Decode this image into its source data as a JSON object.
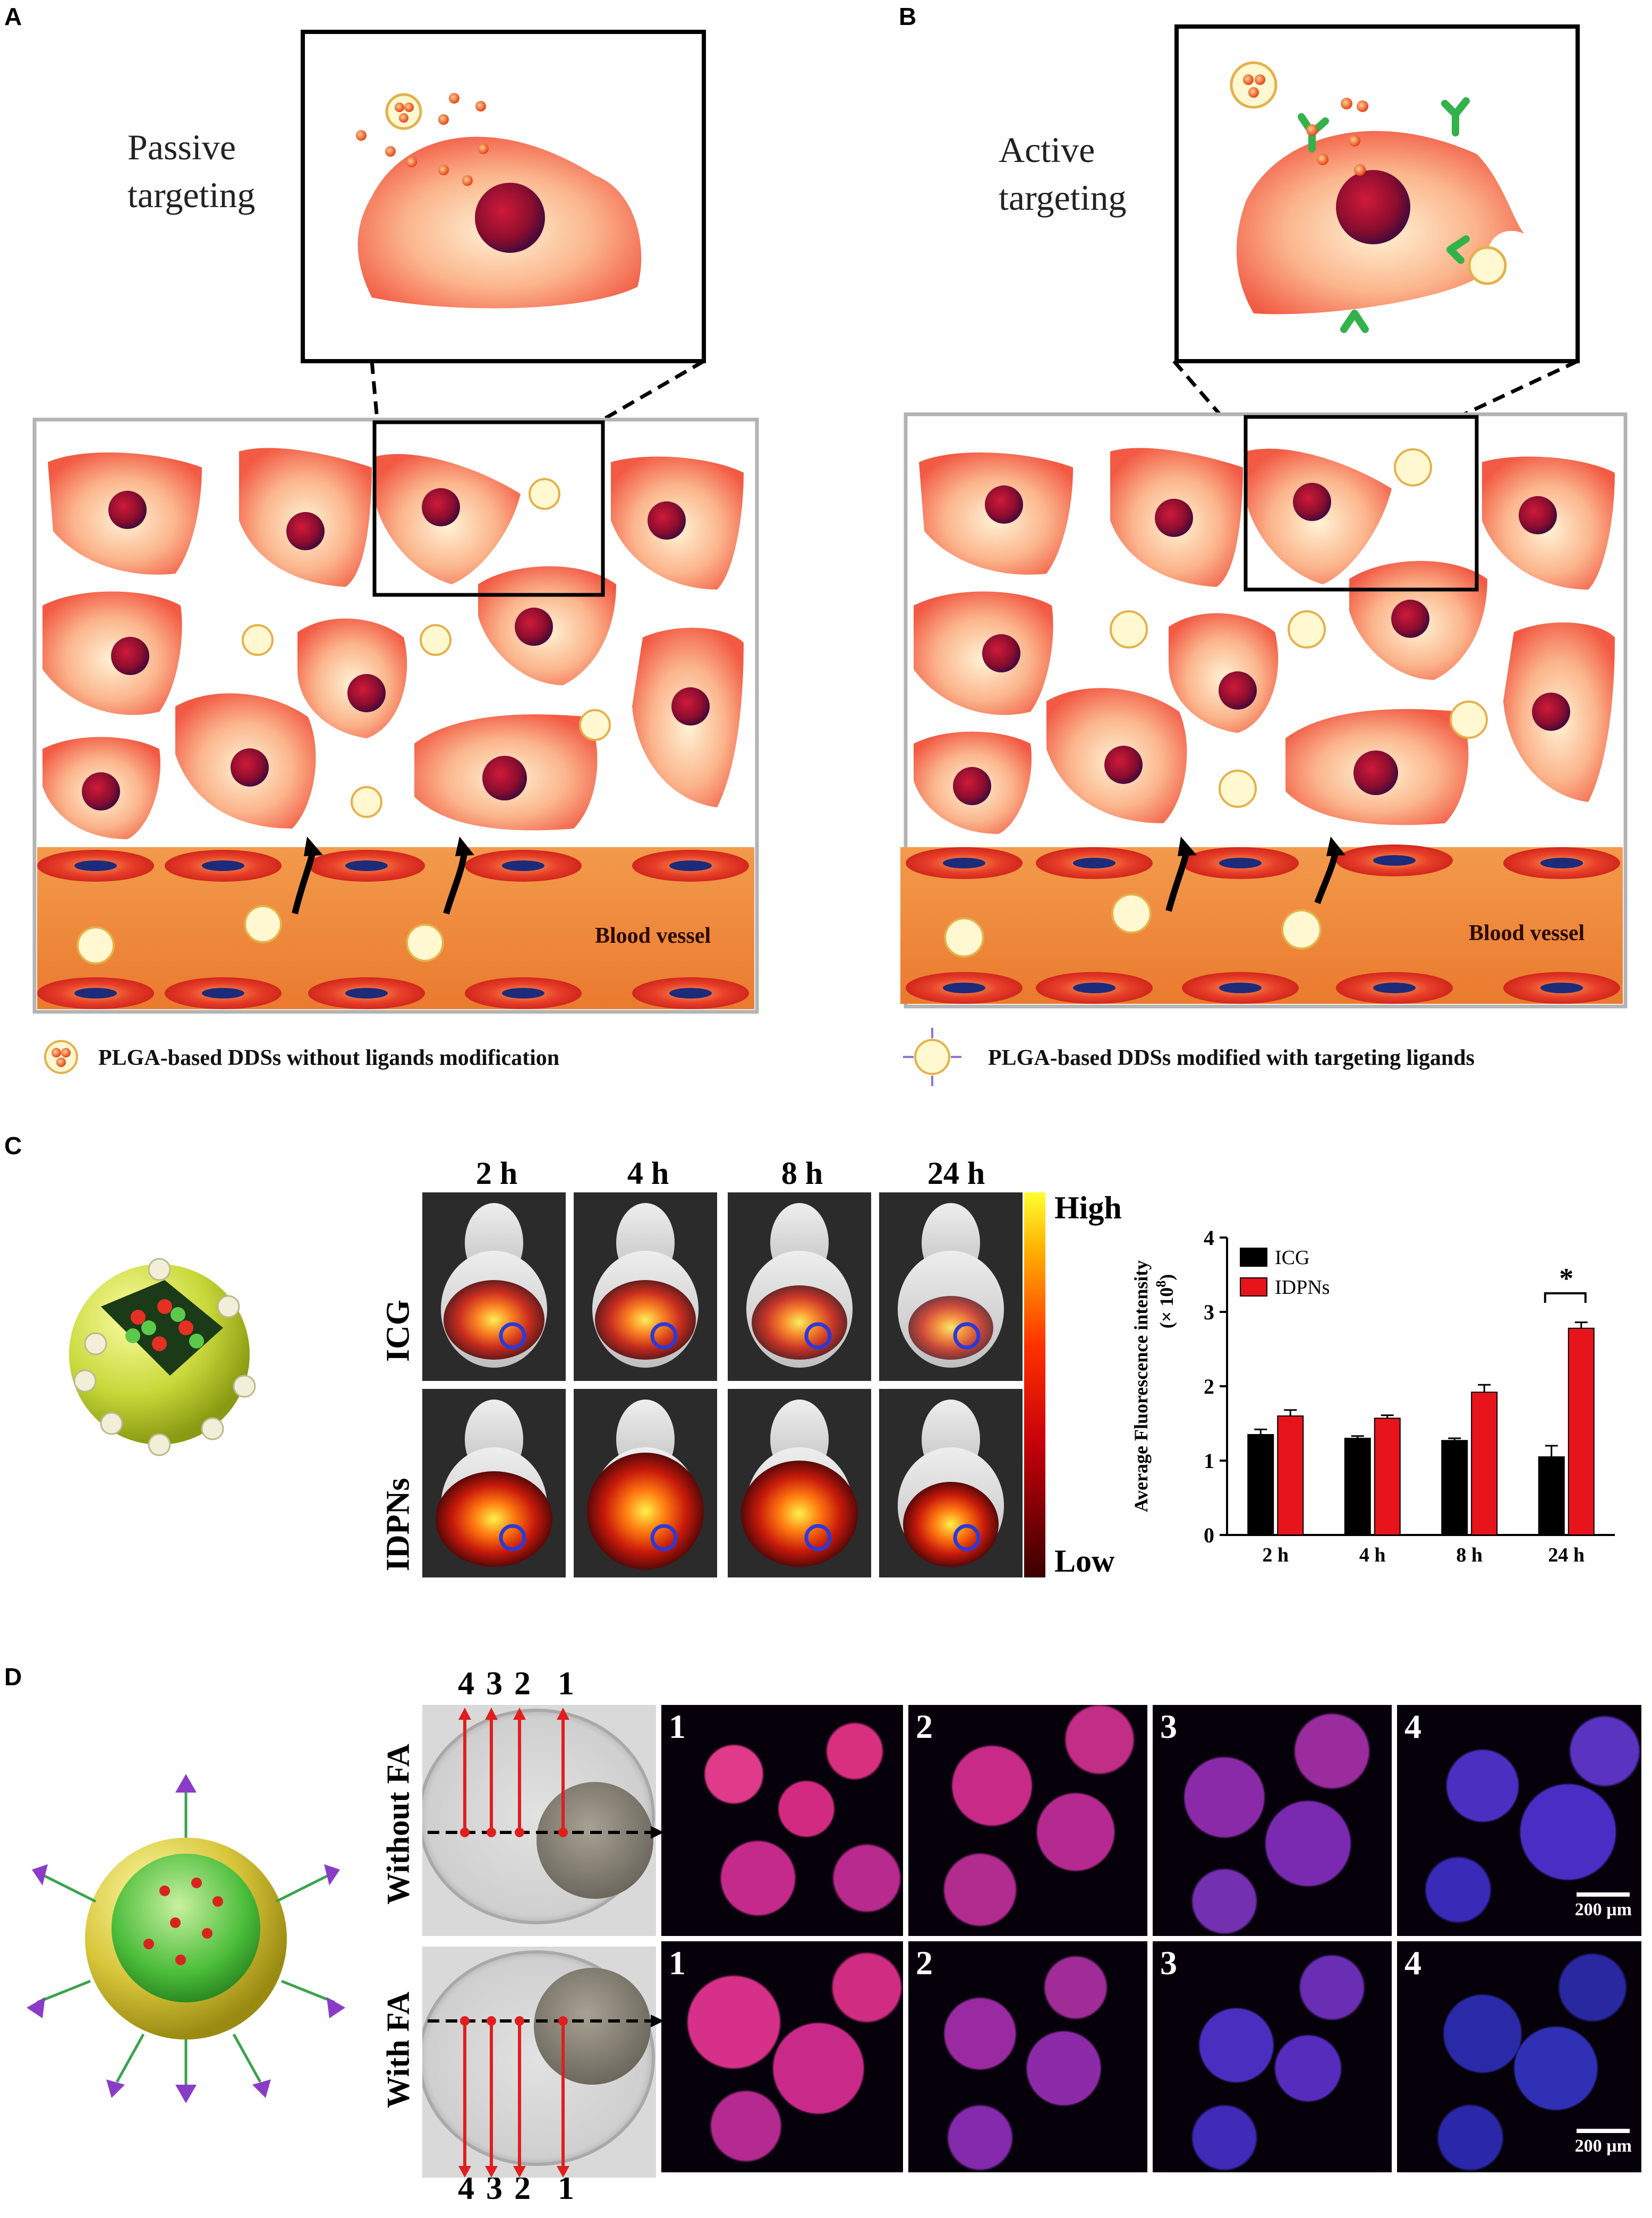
{
  "panels": {
    "A": {
      "letter": "A",
      "zoom_label_line1": "Passive",
      "zoom_label_line2": "targeting",
      "vessel_label": "Blood vessel",
      "legend": "PLGA-based DDSs without ligands modification"
    },
    "B": {
      "letter": "B",
      "zoom_label_line1": "Active",
      "zoom_label_line2": "targeting",
      "vessel_label": "Blood vessel",
      "legend": "PLGA-based DDSs modified with targeting ligands"
    },
    "C": {
      "letter": "C",
      "timepoints": [
        "2 h",
        "4 h",
        "8 h",
        "24 h"
      ],
      "row_labels": [
        "ICG",
        "IDPNs"
      ],
      "colorbar_high": "High",
      "colorbar_low": "Low"
    },
    "D": {
      "letter": "D",
      "row_labels": [
        "Without FA",
        "With FA"
      ],
      "position_numbers": [
        "4",
        "3",
        "2",
        "1"
      ],
      "image_numbers": [
        "1",
        "2",
        "3",
        "4"
      ],
      "scale_bar": "200 µm"
    }
  },
  "chart_data": {
    "type": "bar",
    "categories": [
      "2 h",
      "4 h",
      "8 h",
      "24 h"
    ],
    "series": [
      {
        "name": "ICG",
        "values": [
          1.35,
          1.3,
          1.27,
          1.05
        ],
        "errors": [
          0.07,
          0.03,
          0.03,
          0.15
        ],
        "color": "#000000"
      },
      {
        "name": "IDPNs",
        "values": [
          1.6,
          1.57,
          1.92,
          2.78
        ],
        "errors": [
          0.08,
          0.04,
          0.1,
          0.08
        ],
        "color": "#e8141b"
      }
    ],
    "ylabel": "Average Fluorescence intensity",
    "ylabel_unit": "(× 10",
    "ylabel_exp": "8",
    "ylabel_close": ")",
    "ylim": [
      0,
      4
    ],
    "yticks": [
      "0",
      "1",
      "2",
      "3",
      "4"
    ],
    "significance": "*",
    "legend_position": "top-left"
  },
  "colors": {
    "cell_outer": "#f7826b",
    "cell_inner": "#fde9c4",
    "nucleus": "#b0142b",
    "vessel": "#f08a3c",
    "endothelial": "#e8302a",
    "frame_gray": "#b3b3b3",
    "arrow_red": "#e01e1e"
  }
}
